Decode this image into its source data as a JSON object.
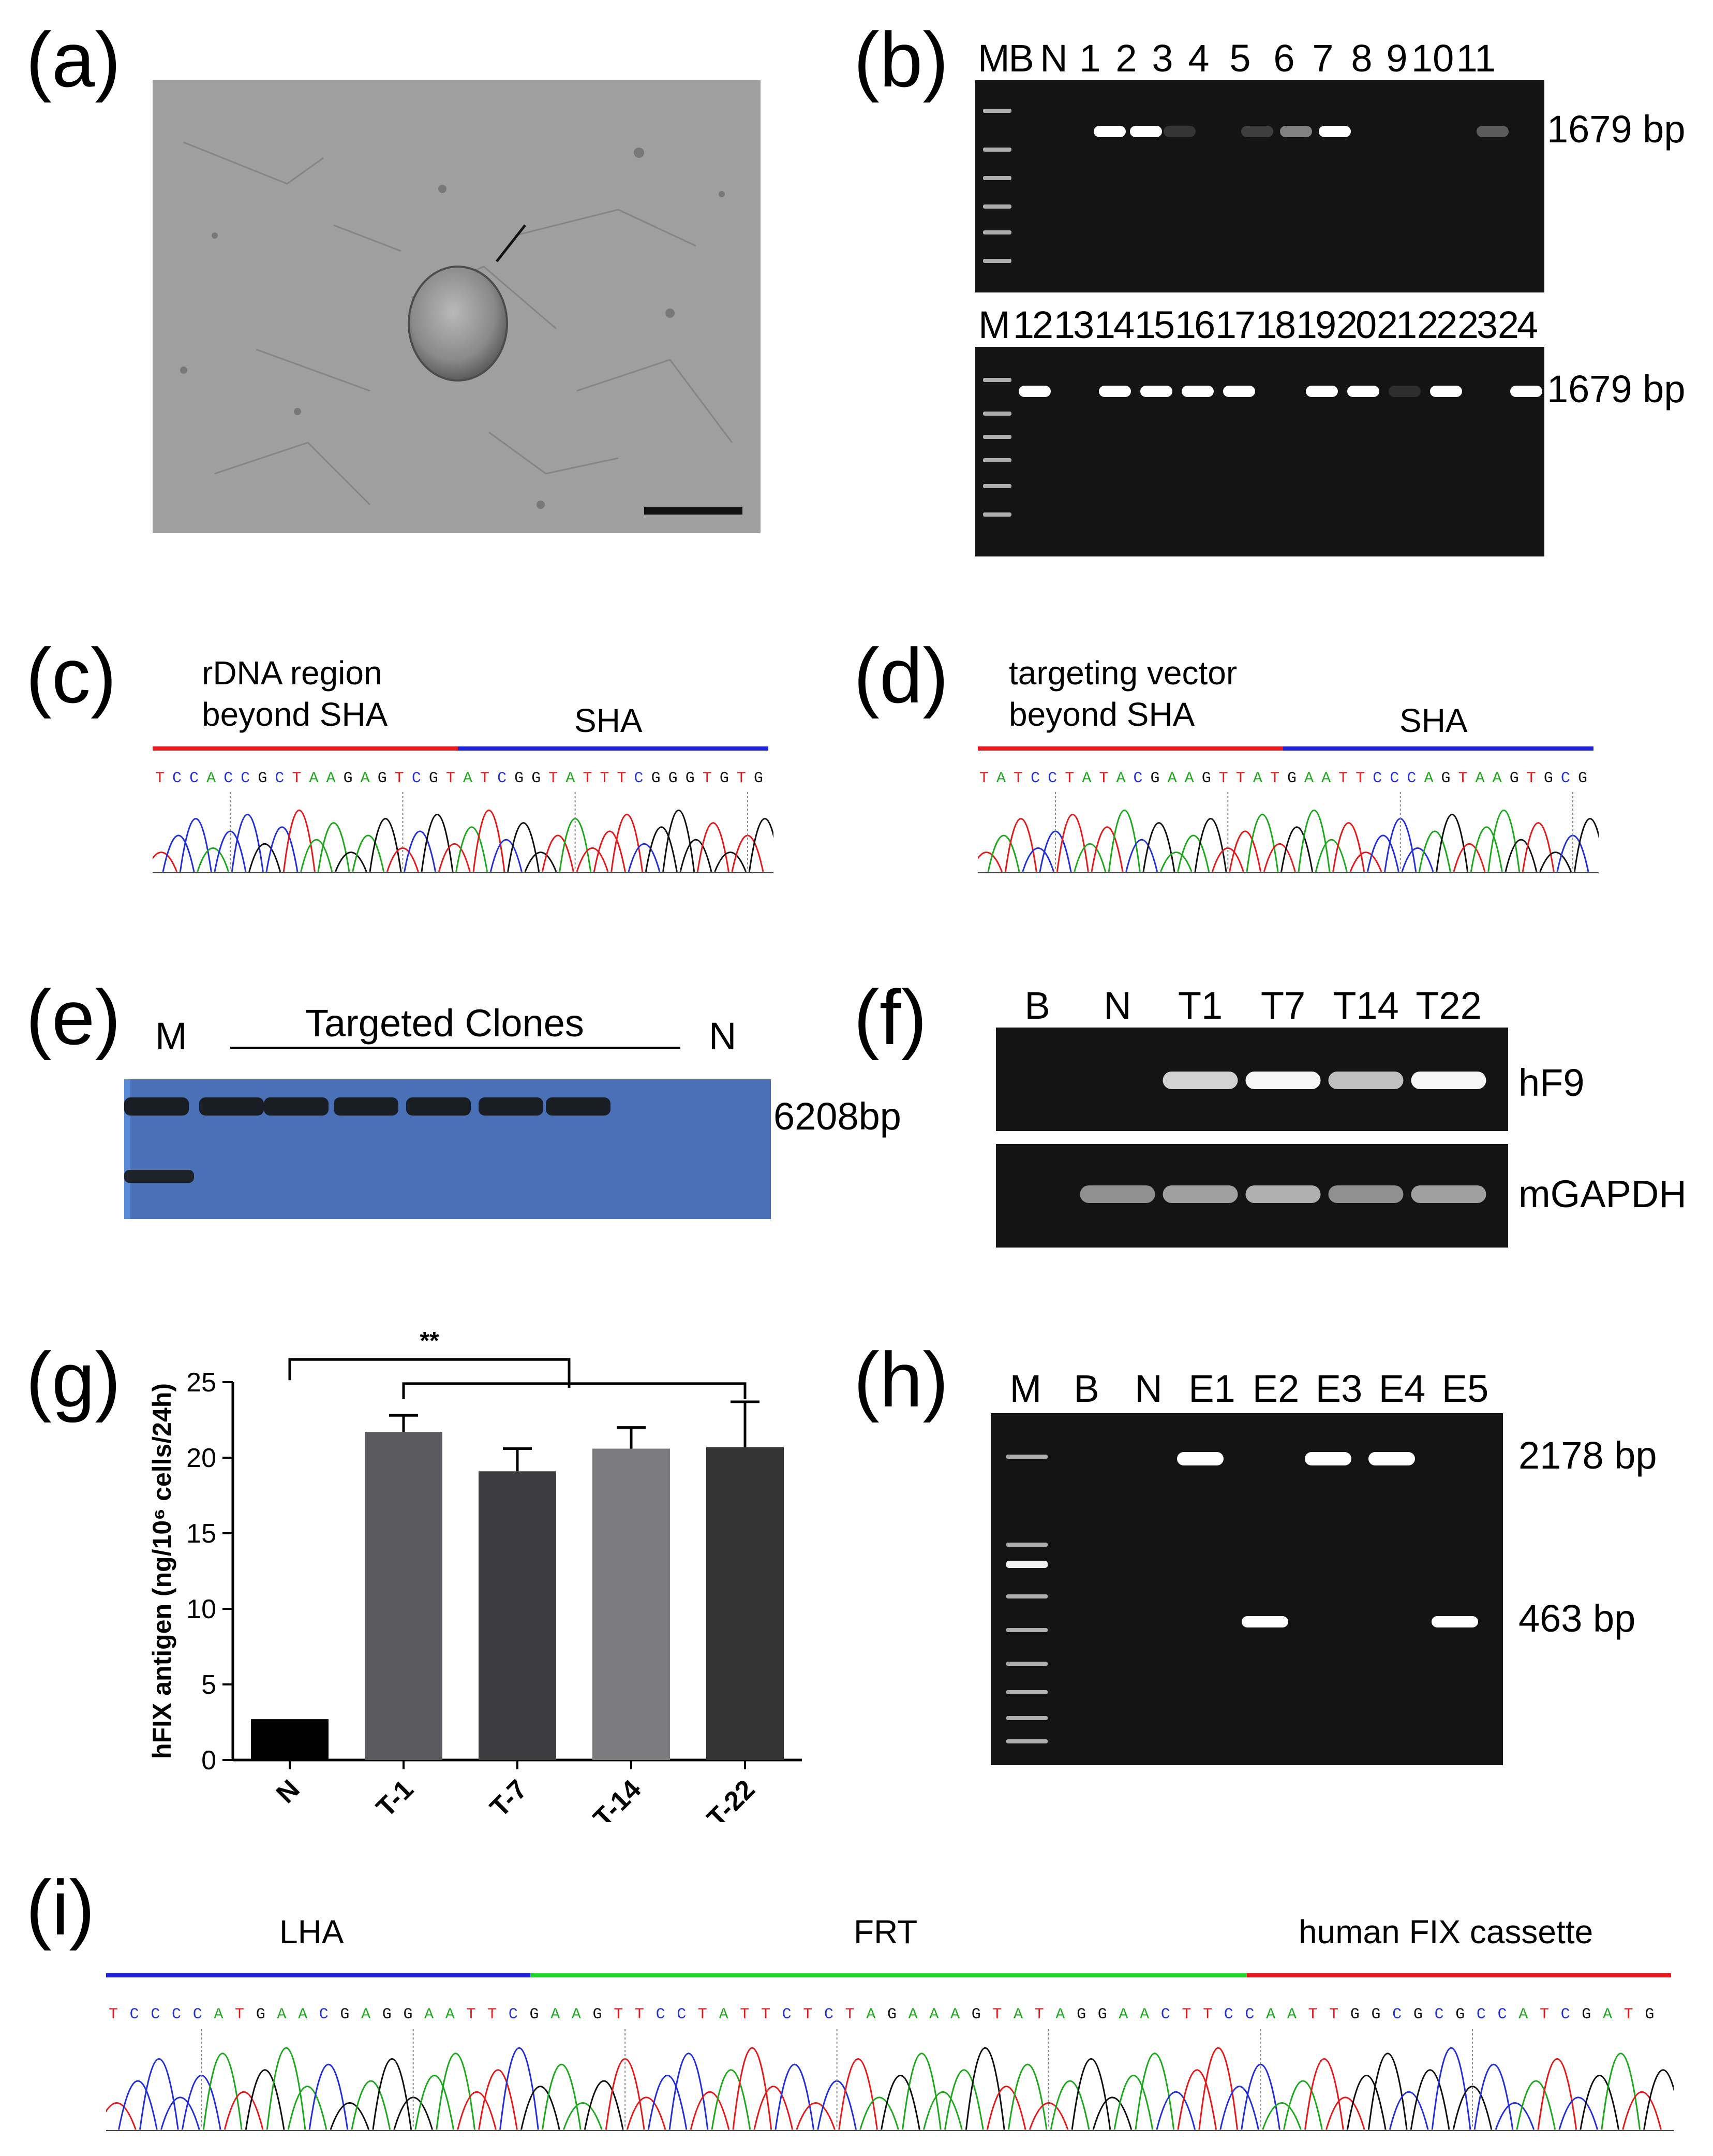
{
  "panel_labels": {
    "a": "(a)",
    "b": "(b)",
    "c": "(c)",
    "d": "(d)",
    "e": "(e)",
    "f": "(f)",
    "g": "(g)",
    "h": "(h)",
    "i": "(i)"
  },
  "panel_b": {
    "top_lanes": [
      "M",
      "B",
      "N",
      "1",
      "2",
      "3",
      "4",
      "5",
      "6",
      "7",
      "8",
      "9",
      "10",
      "11"
    ],
    "bottom_lanes": [
      "M",
      "12",
      "13",
      "14",
      "15",
      "16",
      "17",
      "18",
      "19",
      "20",
      "21",
      "22",
      "23",
      "24"
    ],
    "size_top": "1679 bp",
    "size_bottom": "1679 bp",
    "top_band_intensity": [
      0,
      0,
      0,
      1.0,
      1.0,
      0.15,
      0,
      0.2,
      0.5,
      1.0,
      0,
      0,
      0,
      0.35
    ],
    "bottom_band_intensity": [
      0,
      1.0,
      0,
      1.0,
      1.0,
      1.0,
      1.0,
      0,
      1.0,
      1.0,
      0.1,
      1.0,
      0,
      1.0
    ]
  },
  "panel_c": {
    "left_label": "rDNA region\nbeyond SHA",
    "right_label": "SHA",
    "sequence": "TCCACCGCTAAGAGTCGTATCGGTATTTCGGGTGTG"
  },
  "panel_d": {
    "left_label": "targeting vector\nbeyond SHA",
    "right_label": "SHA",
    "sequence": "TATCCTATACGAAGTTATGAATTCCCAGTAAGTGCG"
  },
  "panel_e": {
    "left_lane": "M",
    "group_label": "Targeted Clones",
    "right_lane": "N",
    "size": "6208bp"
  },
  "panel_f": {
    "lanes": [
      "B",
      "N",
      "T1",
      "T7",
      "T14",
      "T22"
    ],
    "row1": "hF9",
    "row2": "mGAPDH"
  },
  "panel_h": {
    "lanes": [
      "M",
      "B",
      "N",
      "E1",
      "E2",
      "E3",
      "E4",
      "E5"
    ],
    "size_high": "2178 bp",
    "size_low": "463 bp"
  },
  "panel_i": {
    "labels": [
      "LHA",
      "FRT",
      "human FIX cassette"
    ],
    "sequence": "TCCCCATGAACGAGGAATTCGAAGTTCCTATTCTCTAGAAAGTATAGGAACTTCCAATTGGCGCGCCATCGATG"
  },
  "chart_data": {
    "type": "bar",
    "categories": [
      "N",
      "T-1",
      "T-7",
      "T-14",
      "T-22"
    ],
    "values": [
      2.7,
      21.7,
      19.1,
      20.6,
      20.7
    ],
    "errors": [
      0,
      1.1,
      1.5,
      1.4,
      3.0
    ],
    "colors": [
      "#000000",
      "#5a5a5e",
      "#3d3d3f",
      "#7b7b7d",
      "#343434"
    ],
    "ylabel": "hFIX antigen (ng/10⁶ cells/24h)",
    "ylim": [
      0,
      25
    ],
    "yticks": [
      0,
      5,
      10,
      15,
      20,
      25
    ],
    "significance": "**"
  }
}
